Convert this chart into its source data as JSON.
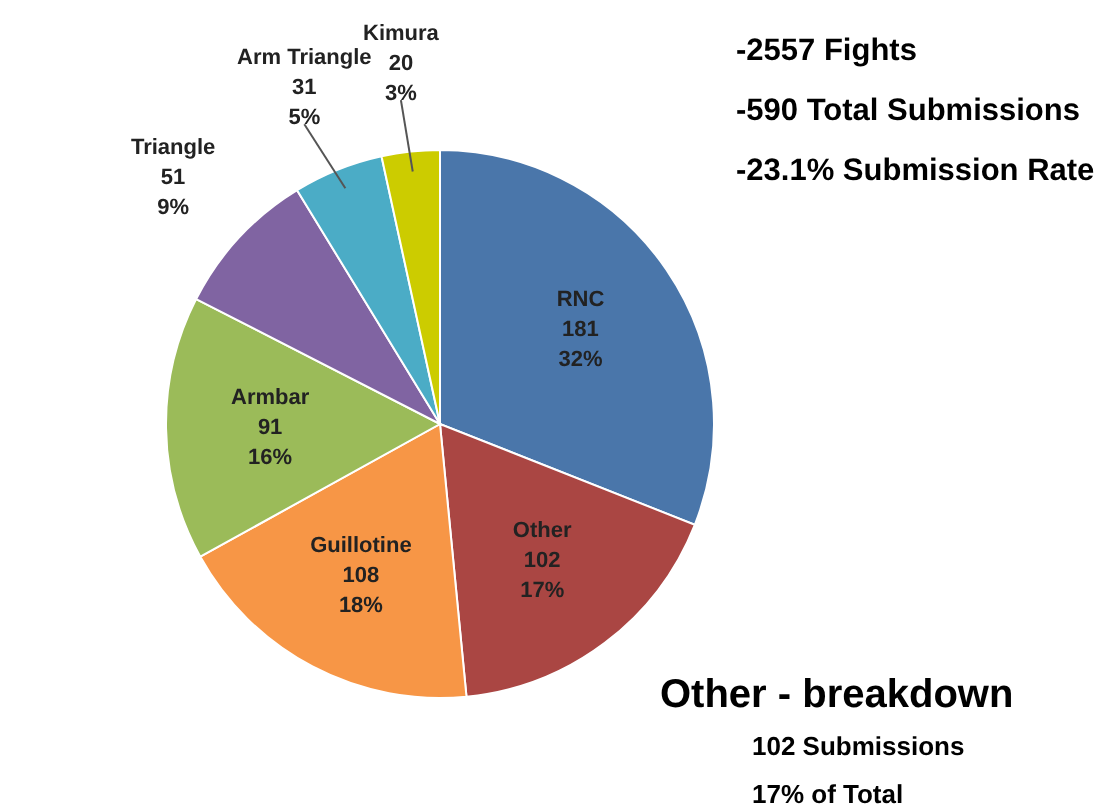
{
  "chart_data": {
    "type": "pie",
    "categories": [
      "RNC",
      "Other",
      "Guillotine",
      "Armbar",
      "Triangle",
      "Arm Triangle",
      "Kimura"
    ],
    "values": [
      181,
      102,
      108,
      91,
      51,
      31,
      20
    ],
    "value_labels": [
      "181 32%",
      "102 17%",
      "108 18%",
      "91 16%",
      "51 9%",
      "31 5%",
      "20 3%"
    ],
    "colors": [
      "#4a76aa",
      "#aa4643",
      "#f79646",
      "#9bbb59",
      "#8064a2",
      "#4bacc6",
      "#cccc00"
    ],
    "annotations": [
      "-2557 Fights",
      "-590 Total Submissions",
      "-23.1% Submission Rate",
      "Other - breakdown",
      "102 Submissions",
      "17% of Total"
    ]
  }
}
